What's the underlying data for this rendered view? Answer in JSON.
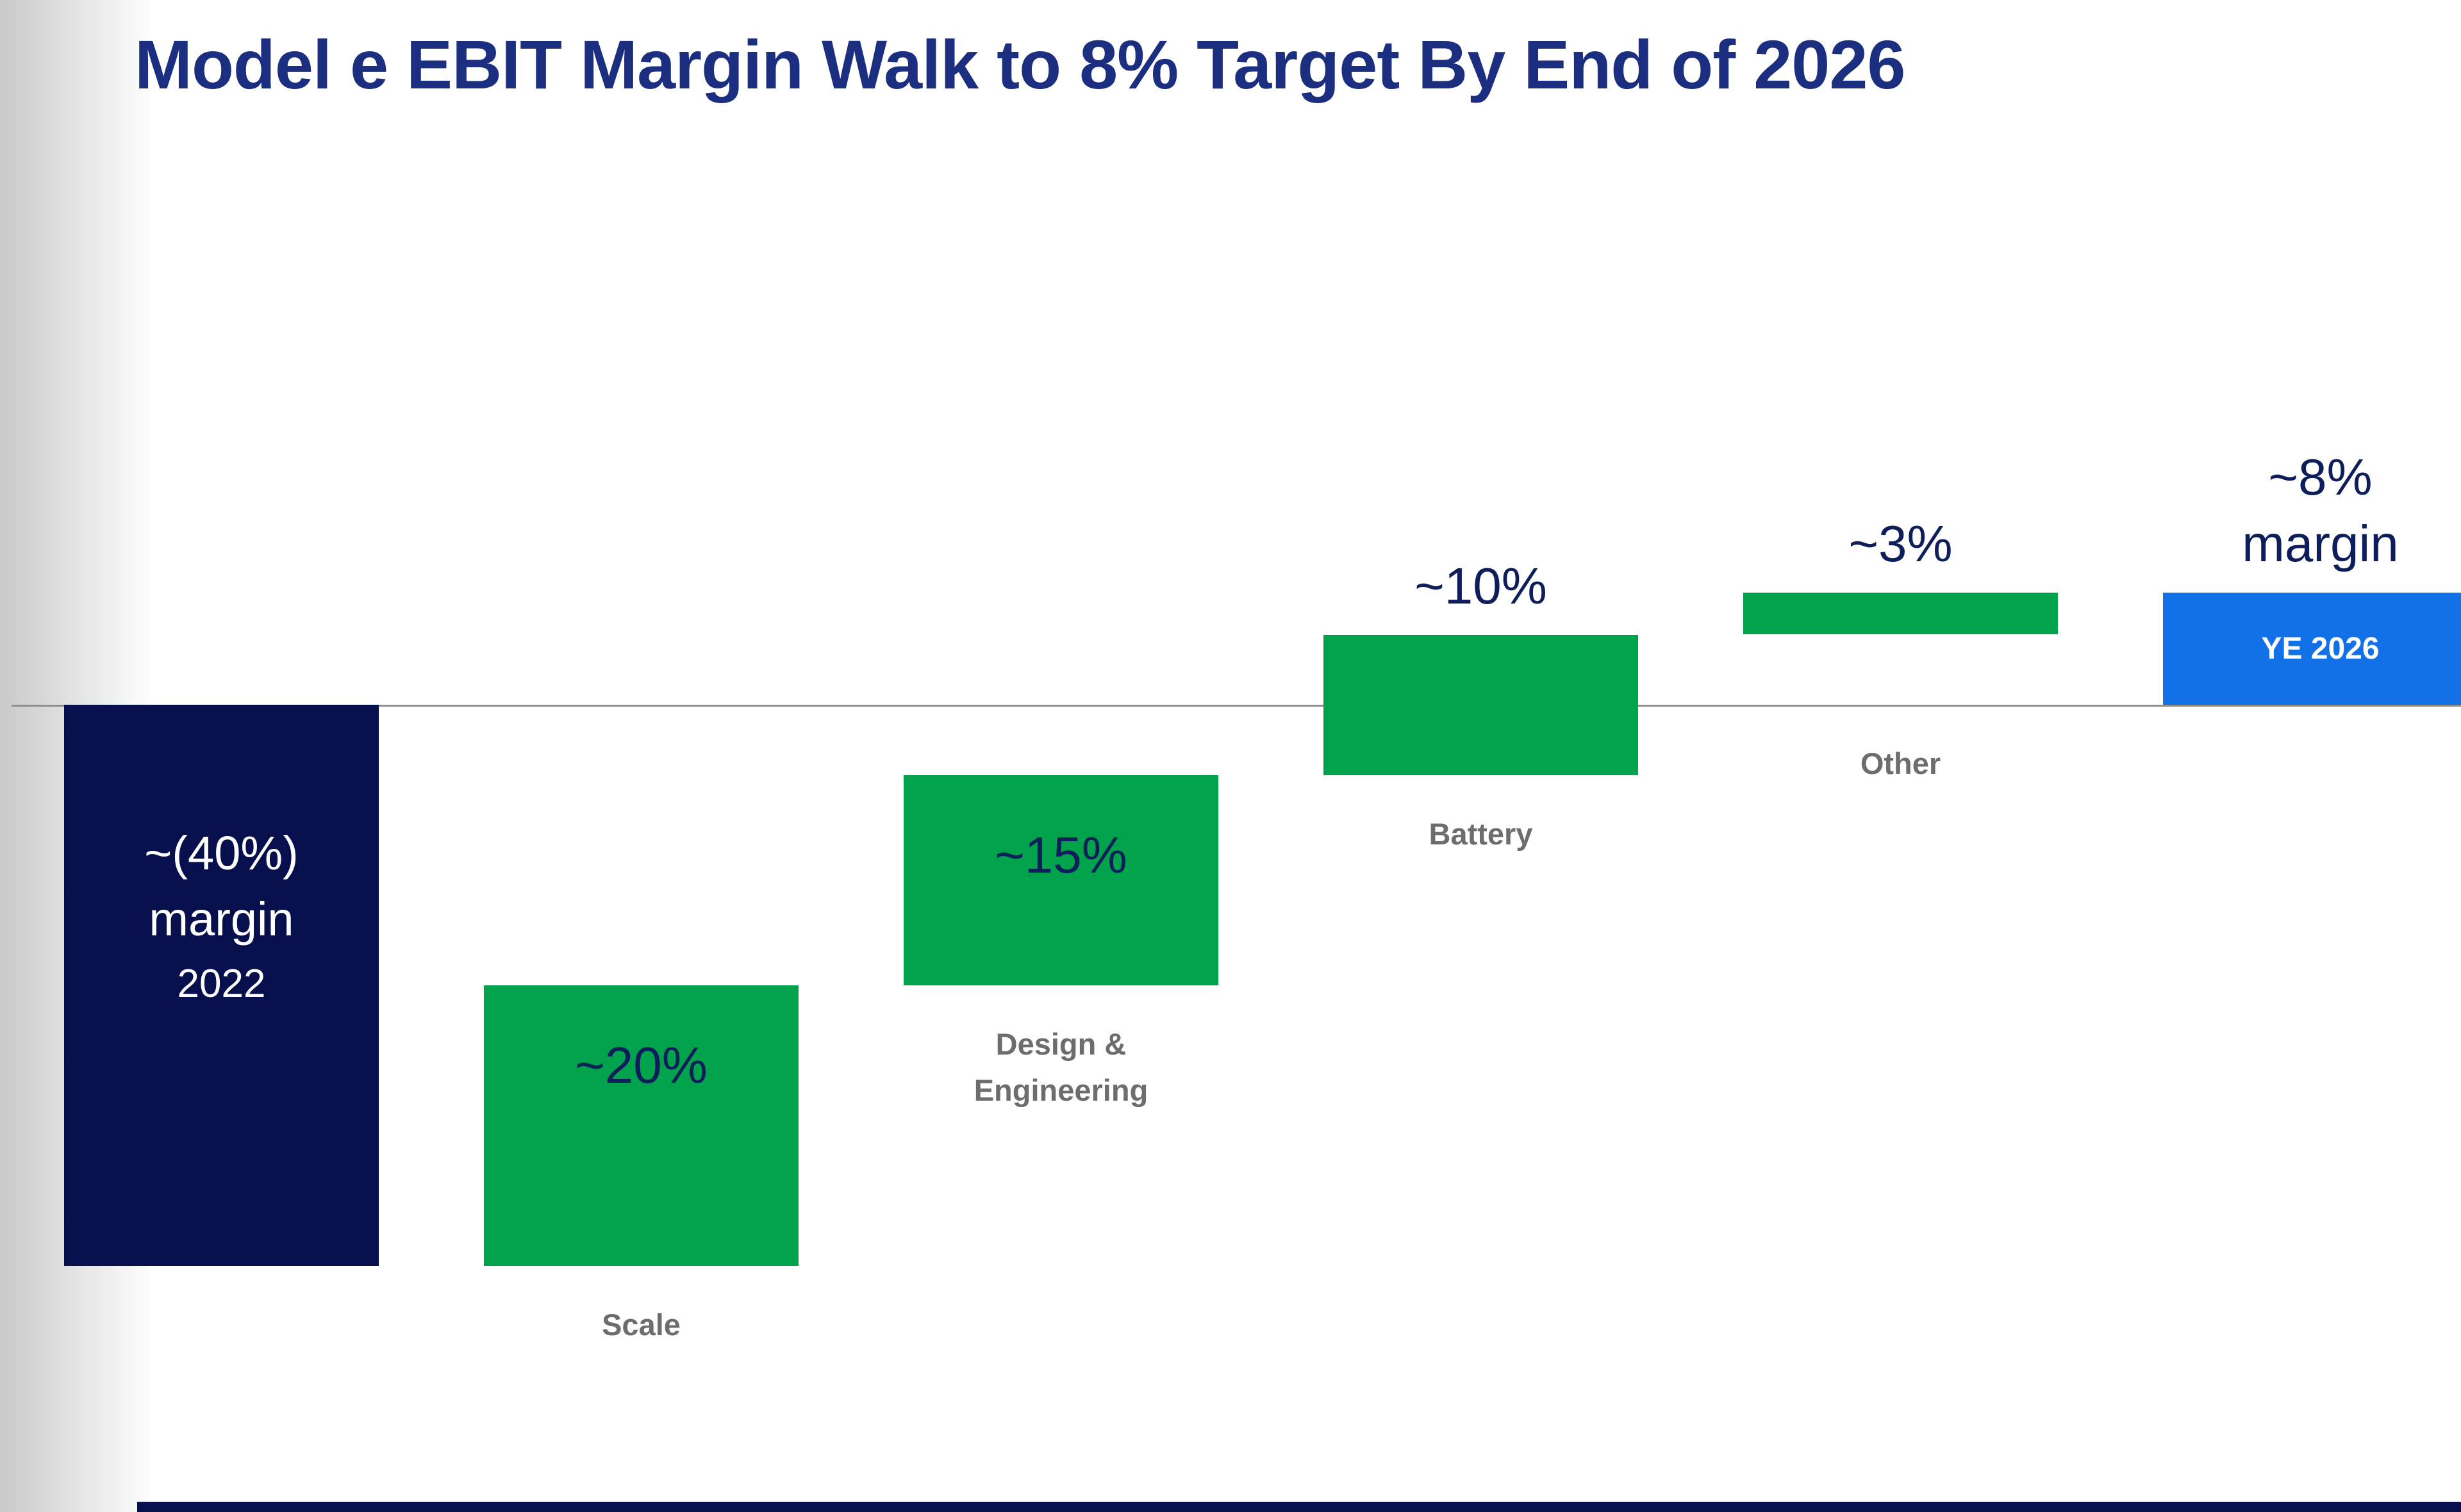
{
  "chart_data": {
    "type": "waterfall",
    "title": "Model e EBIT Margin Walk to 8% Target By End of 2026",
    "unit": "EBIT margin, percent",
    "ylim": [
      -40,
      10
    ],
    "baseline_value": 0,
    "grid": "off",
    "legend": "none",
    "bars": [
      {
        "category": "2022",
        "role": "start-total",
        "start": 0,
        "end": -40,
        "value": -40,
        "value_label": "~(40%) margin",
        "inner_label_lines": [
          "~(40%)",
          "margin"
        ],
        "inner_sublabel": "2022",
        "color": "#070F4D"
      },
      {
        "category": "Scale",
        "role": "increase",
        "start": -40,
        "end": -20,
        "value": 20,
        "value_label": "~20%",
        "label_below": "Scale",
        "color": "#00A24B"
      },
      {
        "category": "Design & Engineering",
        "role": "increase",
        "start": -20,
        "end": -5,
        "value": 15,
        "value_label": "~15%",
        "label_below_lines": [
          "Design &",
          "Engineering"
        ],
        "color": "#00A24B"
      },
      {
        "category": "Battery",
        "role": "increase",
        "start": -5,
        "end": 5,
        "value": 10,
        "value_label": "~10%",
        "label_below": "Battery",
        "color": "#00A24B"
      },
      {
        "category": "Other",
        "role": "increase",
        "start": 5,
        "end": 8,
        "value": 3,
        "value_label": "~3%",
        "label_below": "Other",
        "color": "#00A24B"
      },
      {
        "category": "YE 2026",
        "role": "end-total",
        "start": 0,
        "end": 8,
        "value": 8,
        "value_label_lines": [
          "~8%",
          "margin"
        ],
        "inner_label": "YE 2026",
        "color": "#1371E8"
      }
    ],
    "colors": {
      "negative_total_bar": "#070F4D",
      "increase_bar": "#00A24B",
      "final_total_bar": "#1371E8",
      "baseline_line": "#8F8F8F",
      "value_text": "#0E1E5B",
      "category_text": "#6D6D6D",
      "title_text": "#1C2E80",
      "inner_text": "#FFFFFF",
      "footer_strip": "#070F4D"
    }
  }
}
